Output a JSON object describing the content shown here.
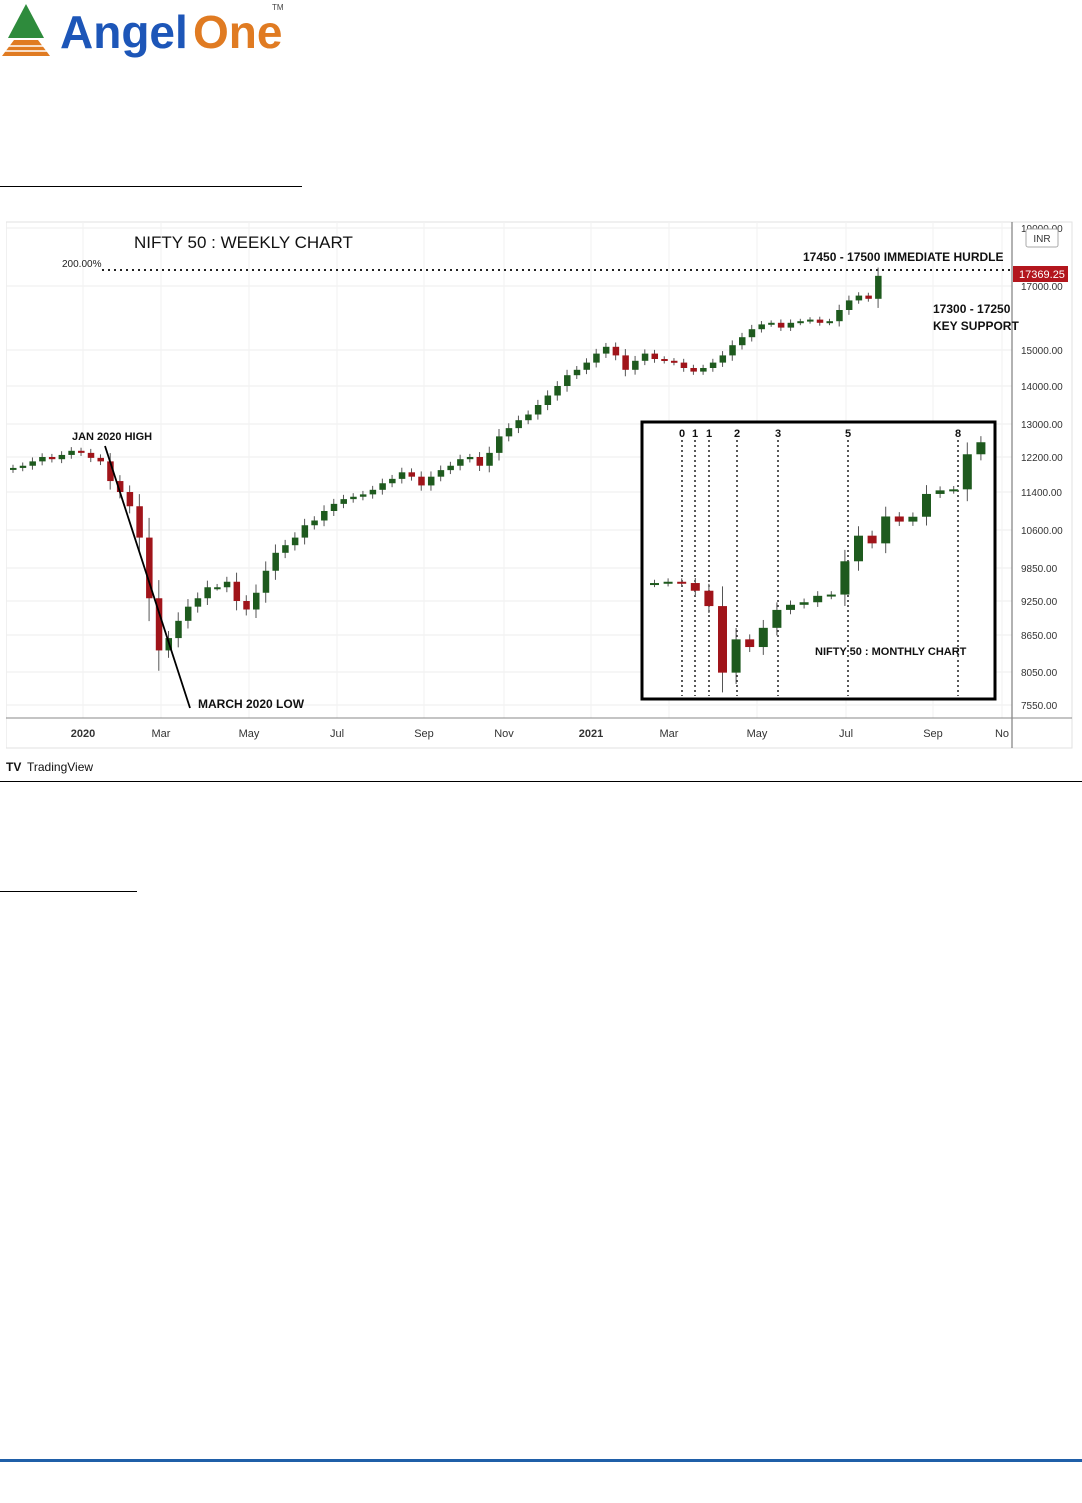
{
  "logo": {
    "text_a": "Angel",
    "text_b": "One",
    "tm": "TM"
  },
  "chart_data": {
    "type": "candlestick",
    "title": "NIFTY 50 : WEEKLY CHART",
    "currency_label": "INR",
    "last_price_label": "17369.25",
    "fib_label": "200.00%",
    "annotations": {
      "hurdle": "17450 - 17500 IMMEDIATE HURDLE",
      "support_1": "17300 - 17250",
      "support_2": "KEY SUPPORT",
      "jan_high": "JAN 2020 HIGH",
      "march_low": "MARCH 2020 LOW"
    },
    "y_ticks": [
      "19000.00",
      "17000.00",
      "15000.00",
      "14000.00",
      "13000.00",
      "12200.00",
      "11400.00",
      "10600.00",
      "9850.00",
      "9250.00",
      "8650.00",
      "8050.00",
      "7550.00"
    ],
    "x_ticks": [
      "2020",
      "Mar",
      "May",
      "Jul",
      "Sep",
      "Nov",
      "2021",
      "Mar",
      "May",
      "Jul",
      "Sep",
      "No"
    ],
    "weekly_closes": [
      11950,
      12000,
      12100,
      12200,
      12150,
      12250,
      12350,
      12300,
      12180,
      12100,
      11650,
      11400,
      11100,
      10450,
      9300,
      8400,
      8600,
      8900,
      9150,
      9300,
      9500,
      9500,
      9600,
      9250,
      9100,
      9400,
      9800,
      10150,
      10300,
      10450,
      10700,
      10800,
      11000,
      11150,
      11250,
      11300,
      11350,
      11450,
      11600,
      11700,
      11850,
      11750,
      11550,
      11750,
      11900,
      12000,
      12150,
      12200,
      12000,
      12300,
      12700,
      12900,
      13100,
      13250,
      13500,
      13750,
      14000,
      14300,
      14450,
      14650,
      14900,
      15100,
      14850,
      14450,
      14700,
      14900,
      14750,
      14700,
      14650,
      14500,
      14400,
      14500,
      14650,
      14850,
      15150,
      15400,
      15650,
      15800,
      15850,
      15700,
      15850,
      15900,
      15950,
      15850,
      15900,
      16250,
      16550,
      16700,
      16600,
      17350
    ],
    "inset": {
      "title": "NIFTY 50 : MONTHLY CHART",
      "counts": [
        "0",
        "1",
        "1",
        "2",
        "3",
        "5",
        "8"
      ],
      "monthly_closes": [
        12100,
        12150,
        12100,
        11800,
        11200,
        8600,
        9900,
        9600,
        10350,
        11050,
        11250,
        11350,
        11600,
        11650,
        12950,
        13950,
        13650,
        14700,
        14500,
        14690,
        15580,
        15720,
        15760,
        17130,
        17600
      ]
    }
  },
  "branding": {
    "tradingview": "TradingView",
    "tv_mark": "TV"
  }
}
